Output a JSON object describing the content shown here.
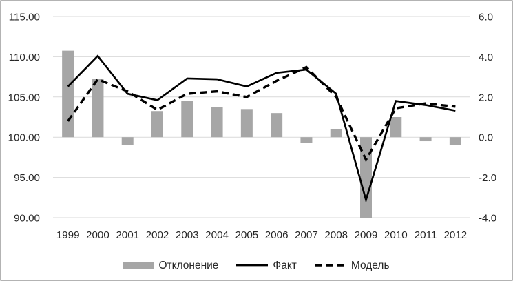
{
  "window": {
    "background": "#ffffff",
    "border_color": "#b3b3b3"
  },
  "chart_data": {
    "type": "combo-bar-line",
    "title": "",
    "categories": [
      "1999",
      "2000",
      "2001",
      "2002",
      "2003",
      "2004",
      "2005",
      "2006",
      "2007",
      "2008",
      "2009",
      "2010",
      "2011",
      "2012"
    ],
    "series": [
      {
        "name": "Отклонение",
        "type": "bar",
        "axis": "right",
        "color": "#a6a6a6",
        "values": [
          4.3,
          2.9,
          -0.4,
          1.3,
          1.8,
          1.5,
          1.4,
          1.2,
          -0.3,
          0.4,
          -4.0,
          1.0,
          -0.2,
          -0.4
        ]
      },
      {
        "name": "Факт",
        "type": "line",
        "line_style": "solid",
        "axis": "left",
        "color": "#000000",
        "values": [
          106.3,
          110.1,
          105.4,
          104.6,
          107.3,
          107.2,
          106.3,
          108.0,
          108.4,
          105.4,
          92.2,
          104.5,
          104.0,
          103.3
        ]
      },
      {
        "name": "Модель",
        "type": "line",
        "line_style": "dashed",
        "axis": "left",
        "color": "#000000",
        "values": [
          102.0,
          107.2,
          105.7,
          103.4,
          105.4,
          105.7,
          105.0,
          107.0,
          108.7,
          105.0,
          97.2,
          103.6,
          104.2,
          103.8
        ]
      }
    ],
    "left_axis": {
      "min": 90,
      "max": 115,
      "step": 5,
      "tick_labels": [
        "115.00",
        "110.00",
        "105.00",
        "100.00",
        "95.00",
        "90.00"
      ]
    },
    "right_axis": {
      "min": -4,
      "max": 6,
      "step": 2,
      "tick_labels": [
        "6.0",
        "4.0",
        "2.0",
        "0.0",
        "-2.0",
        "-4.0"
      ]
    },
    "grid": "horizontal",
    "gridline_color": "#d9d9d9",
    "label_color": "#262626",
    "legend_position": "bottom"
  }
}
